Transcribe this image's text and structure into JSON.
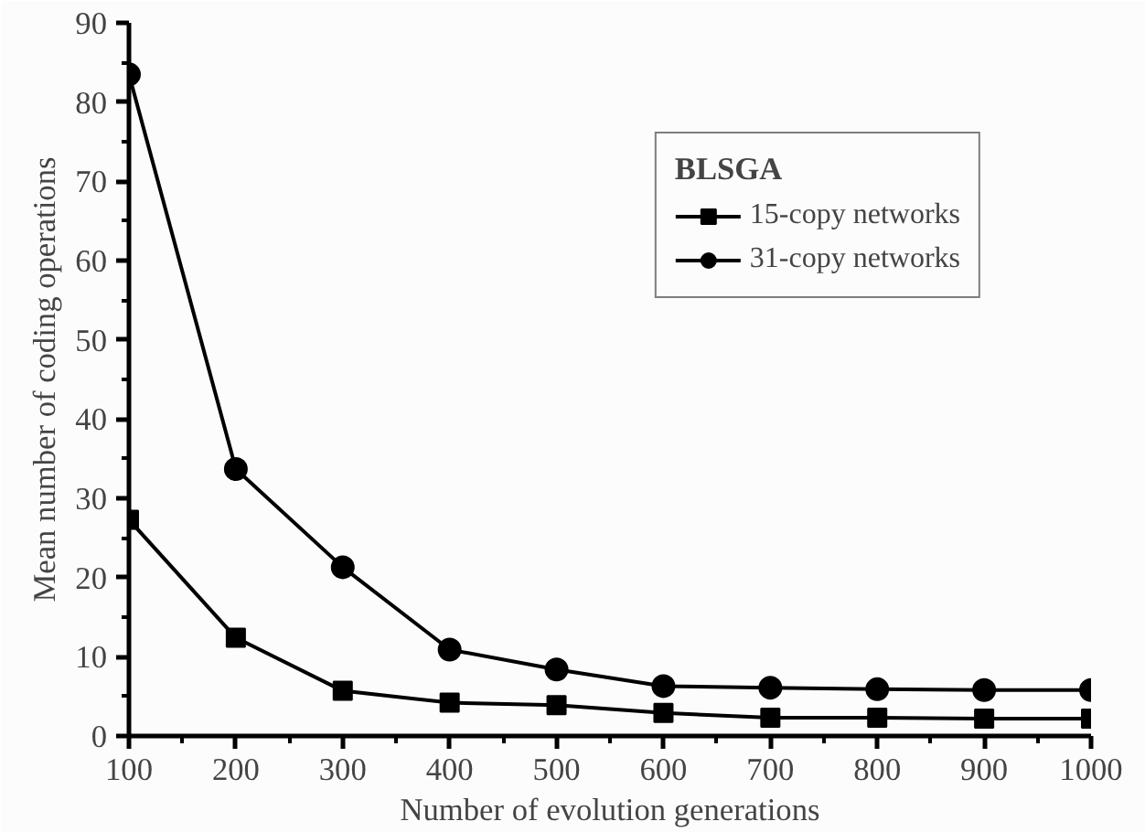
{
  "chart_data": {
    "type": "line",
    "xlabel": "Number of evolution generations",
    "ylabel": "Mean number of coding operations",
    "legend_title": "BLSGA",
    "legend": "top right",
    "grid": false,
    "line_style": "solid",
    "x": [
      100,
      200,
      300,
      400,
      500,
      600,
      700,
      800,
      900,
      1000
    ],
    "xlim": [
      100,
      1000
    ],
    "xticks": [
      100,
      200,
      300,
      400,
      500,
      600,
      700,
      800,
      900,
      1000
    ],
    "ylim": [
      0,
      90
    ],
    "yticks": [
      0,
      10,
      20,
      30,
      40,
      50,
      60,
      70,
      80,
      90
    ],
    "series": [
      {
        "name": "15-copy networks",
        "color": "#000000",
        "marker": "square",
        "values": [
          27.3,
          12.4,
          5.7,
          4.2,
          3.9,
          2.9,
          2.3,
          2.3,
          2.2,
          2.2
        ]
      },
      {
        "name": "31-copy networks",
        "color": "#000000",
        "marker": "circle",
        "values": [
          83.5,
          33.7,
          21.3,
          10.9,
          8.4,
          6.3,
          6.1,
          5.9,
          5.8,
          5.8
        ]
      }
    ]
  }
}
